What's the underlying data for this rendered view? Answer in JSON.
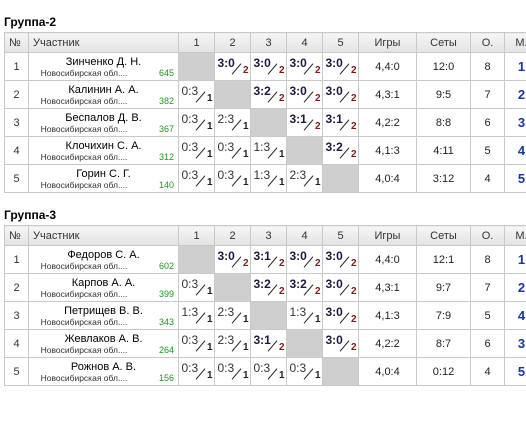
{
  "header": {
    "no": "№",
    "player": "Участник",
    "rounds": [
      "1",
      "2",
      "3",
      "4",
      "5"
    ],
    "games": "Игры",
    "sets": "Сеты",
    "points": "О.",
    "place": "М."
  },
  "groups": [
    {
      "title": "Группа-2",
      "rows": [
        {
          "no": "1",
          "name": "Зинченко Д. Н.",
          "region": "Новосибирская обл....",
          "rating": "645",
          "cells": [
            null,
            {
              "s": "3:0",
              "p": "2",
              "w": true
            },
            {
              "s": "3:0",
              "p": "2",
              "w": true
            },
            {
              "s": "3:0",
              "p": "2",
              "w": true
            },
            {
              "s": "3:0",
              "p": "2",
              "w": true
            }
          ],
          "games": "4,4:0",
          "sets": "12:0",
          "points": "8",
          "place": "1"
        },
        {
          "no": "2",
          "name": "Калинин А. А.",
          "region": "Новосибирская обл....",
          "rating": "382",
          "cells": [
            {
              "s": "0:3",
              "p": "1",
              "w": false
            },
            null,
            {
              "s": "3:2",
              "p": "2",
              "w": true
            },
            {
              "s": "3:0",
              "p": "2",
              "w": true
            },
            {
              "s": "3:0",
              "p": "2",
              "w": true
            }
          ],
          "games": "4,3:1",
          "sets": "9:5",
          "points": "7",
          "place": "2"
        },
        {
          "no": "3",
          "name": "Беспалов Д. В.",
          "region": "Новосибирская обл....",
          "rating": "367",
          "cells": [
            {
              "s": "0:3",
              "p": "1",
              "w": false
            },
            {
              "s": "2:3",
              "p": "1",
              "w": false
            },
            null,
            {
              "s": "3:1",
              "p": "2",
              "w": true
            },
            {
              "s": "3:1",
              "p": "2",
              "w": true
            }
          ],
          "games": "4,2:2",
          "sets": "8:8",
          "points": "6",
          "place": "3"
        },
        {
          "no": "4",
          "name": "Клочихин С. А.",
          "region": "Новосибирская обл....",
          "rating": "312",
          "cells": [
            {
              "s": "0:3",
              "p": "1",
              "w": false
            },
            {
              "s": "0:3",
              "p": "1",
              "w": false
            },
            {
              "s": "1:3",
              "p": "1",
              "w": false
            },
            null,
            {
              "s": "3:2",
              "p": "2",
              "w": true
            }
          ],
          "games": "4,1:3",
          "sets": "4:11",
          "points": "5",
          "place": "4"
        },
        {
          "no": "5",
          "name": "Горин С. Г.",
          "region": "Новосибирская обл....",
          "rating": "140",
          "cells": [
            {
              "s": "0:3",
              "p": "1",
              "w": false
            },
            {
              "s": "0:3",
              "p": "1",
              "w": false
            },
            {
              "s": "1:3",
              "p": "1",
              "w": false
            },
            {
              "s": "2:3",
              "p": "1",
              "w": false
            },
            null
          ],
          "games": "4,0:4",
          "sets": "3:12",
          "points": "4",
          "place": "5"
        }
      ]
    },
    {
      "title": "Группа-3",
      "rows": [
        {
          "no": "1",
          "name": "Федоров С. А.",
          "region": "Новосибирская обл....",
          "rating": "602",
          "cells": [
            null,
            {
              "s": "3:0",
              "p": "2",
              "w": true
            },
            {
              "s": "3:1",
              "p": "2",
              "w": true
            },
            {
              "s": "3:0",
              "p": "2",
              "w": true
            },
            {
              "s": "3:0",
              "p": "2",
              "w": true
            }
          ],
          "games": "4,4:0",
          "sets": "12:1",
          "points": "8",
          "place": "1"
        },
        {
          "no": "2",
          "name": "Карпов А. А.",
          "region": "Новосибирская обл....",
          "rating": "399",
          "cells": [
            {
              "s": "0:3",
              "p": "1",
              "w": false
            },
            null,
            {
              "s": "3:2",
              "p": "2",
              "w": true
            },
            {
              "s": "3:2",
              "p": "2",
              "w": true
            },
            {
              "s": "3:0",
              "p": "2",
              "w": true
            }
          ],
          "games": "4,3:1",
          "sets": "9:7",
          "points": "7",
          "place": "2"
        },
        {
          "no": "3",
          "name": "Петрищев В. В.",
          "region": "Новосибирская обл....",
          "rating": "343",
          "cells": [
            {
              "s": "1:3",
              "p": "1",
              "w": false
            },
            {
              "s": "2:3",
              "p": "1",
              "w": false
            },
            null,
            {
              "s": "1:3",
              "p": "1",
              "w": false
            },
            {
              "s": "3:0",
              "p": "2",
              "w": true
            }
          ],
          "games": "4,1:3",
          "sets": "7:9",
          "points": "5",
          "place": "4"
        },
        {
          "no": "4",
          "name": "Жевлаков А. В.",
          "region": "Новосибирская обл....",
          "rating": "264",
          "cells": [
            {
              "s": "0:3",
              "p": "1",
              "w": false
            },
            {
              "s": "2:3",
              "p": "1",
              "w": false
            },
            {
              "s": "3:1",
              "p": "2",
              "w": true
            },
            null,
            {
              "s": "3:0",
              "p": "2",
              "w": true
            }
          ],
          "games": "4,2:2",
          "sets": "8:7",
          "points": "6",
          "place": "3"
        },
        {
          "no": "5",
          "name": "Рожнов А. В.",
          "region": "Новосибирская обл....",
          "rating": "156",
          "cells": [
            {
              "s": "0:3",
              "p": "1",
              "w": false
            },
            {
              "s": "0:3",
              "p": "1",
              "w": false
            },
            {
              "s": "0:3",
              "p": "1",
              "w": false
            },
            {
              "s": "0:3",
              "p": "1",
              "w": false
            },
            null
          ],
          "games": "4,0:4",
          "sets": "0:12",
          "points": "4",
          "place": "5"
        }
      ]
    }
  ]
}
